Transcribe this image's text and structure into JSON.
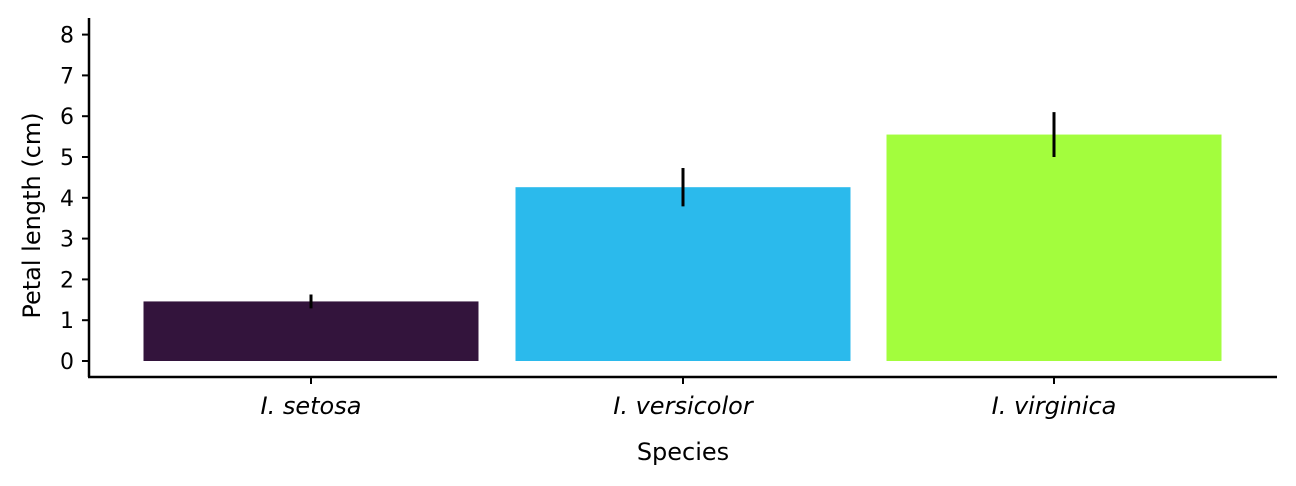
{
  "chart_data": {
    "type": "bar",
    "categories": [
      "I. setosa",
      "I. versicolor",
      "I. virginica"
    ],
    "values": [
      1.46,
      4.26,
      5.55
    ],
    "error": [
      0.17,
      0.47,
      0.55
    ],
    "colors": [
      "#33143c",
      "#2bbaec",
      "#a3fd3d"
    ],
    "xlabel": "Species",
    "ylabel": "Petal length (cm)",
    "ylim": [
      -0.4,
      8.4
    ],
    "yticks": [
      0,
      1,
      2,
      3,
      4,
      5,
      6,
      7,
      8
    ],
    "grid": false,
    "legend": "none"
  }
}
